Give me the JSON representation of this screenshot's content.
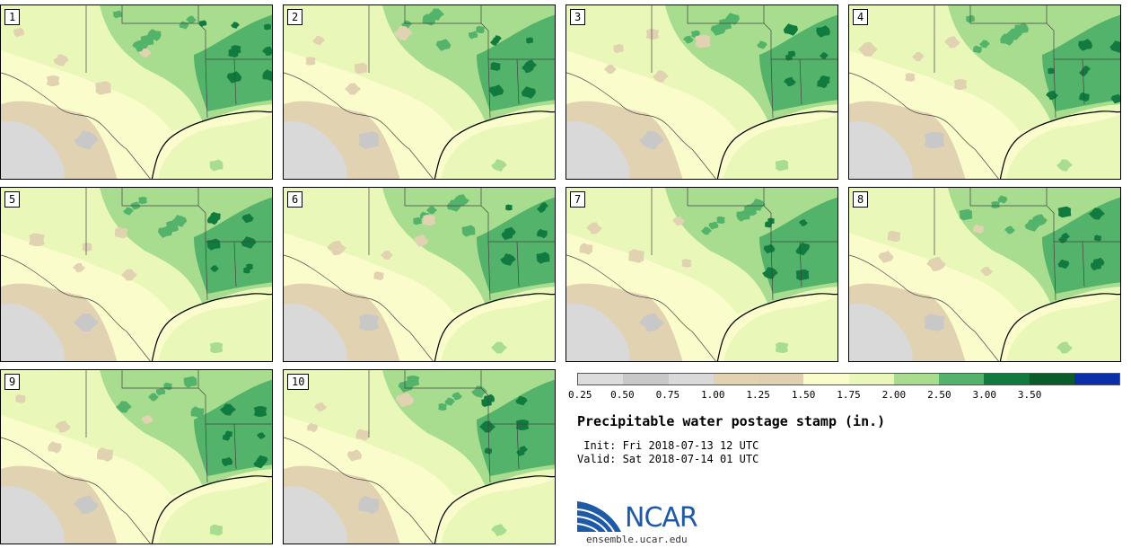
{
  "panels": [
    "1",
    "2",
    "3",
    "4",
    "5",
    "6",
    "7",
    "8",
    "9",
    "10"
  ],
  "colorbar": {
    "colors": [
      "#dcdcdc",
      "#c8c8c8",
      "#d9d9d9",
      "#e1d2b2",
      "#ded0b0",
      "#fbfccb",
      "#e9f8b8",
      "#a8dc8e",
      "#54b36a",
      "#117a3e",
      "#0a5c2a",
      "#0b2fa8"
    ],
    "labels": [
      "0.25",
      "0.50",
      "0.75",
      "1.00",
      "1.25",
      "1.50",
      "1.75",
      "2.00",
      "2.50",
      "3.00",
      "3.50"
    ]
  },
  "title": "Precipitable water postage stamp (in.)",
  "init": " Init: Fri 2018-07-13 12 UTC",
  "valid": "Valid: Sat 2018-07-14 01 UTC",
  "logo": {
    "text": "NCAR",
    "url": "ensemble.ucar.edu"
  }
}
